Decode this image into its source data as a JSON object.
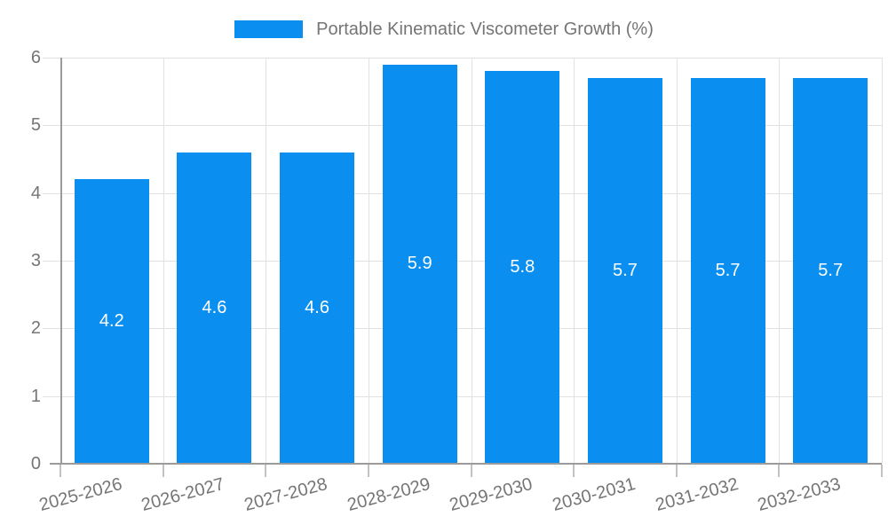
{
  "legend": {
    "label": "Portable Kinematic Viscometer Growth (%)"
  },
  "chart_data": {
    "type": "bar",
    "title": "Portable Kinematic Viscometer Growth (%)",
    "categories": [
      "2025-2026",
      "2026-2027",
      "2027-2028",
      "2028-2029",
      "2029-2030",
      "2030-2031",
      "2031-2032",
      "2032-2033"
    ],
    "values": [
      4.2,
      4.6,
      4.6,
      5.9,
      5.8,
      5.7,
      5.7,
      5.7
    ],
    "value_labels": [
      "4.2",
      "4.6",
      "4.6",
      "5.9",
      "5.8",
      "5.7",
      "5.7",
      "5.7"
    ],
    "xlabel": "",
    "ylabel": "",
    "ylim": [
      0,
      6
    ],
    "yticks": [
      "0",
      "1",
      "2",
      "3",
      "4",
      "5",
      "6"
    ],
    "grid": true,
    "legend_position": "top-center",
    "x_label_rotation_deg": -15,
    "colors": {
      "bar": "#0a8ff0",
      "value_label": "#ffffff",
      "grid": "#e2e2e2",
      "axis": "#9b9b9b",
      "xtick_mark": "#c2c2c2",
      "tick_text": "#757575",
      "legend_text": "#757575",
      "background": "#ffffff"
    }
  }
}
